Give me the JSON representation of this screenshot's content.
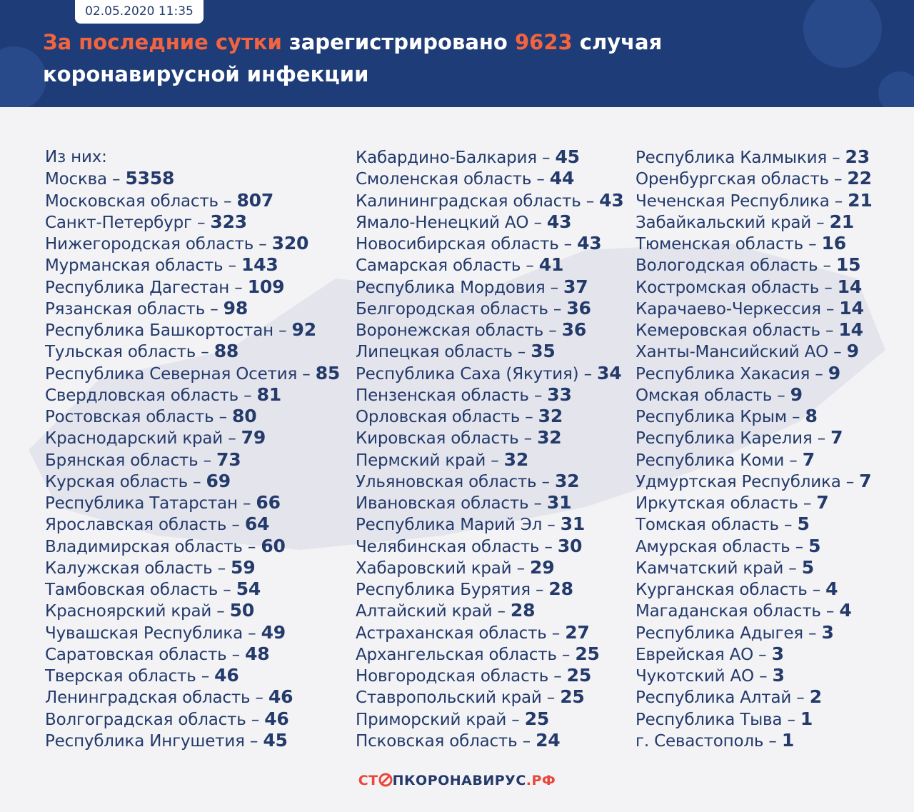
{
  "header": {
    "date": "02.05.2020 11:35",
    "title_highlight": "За последние сутки",
    "title_text": "зарегистрировано",
    "total": 9623,
    "title_end": "случая",
    "title_line2": "коронавирусной инфекции"
  },
  "intro": "Из них:",
  "separator": "–",
  "columns": [
    [
      {
        "name": "Москва",
        "value": 5358
      },
      {
        "name": "Московская область",
        "value": 807
      },
      {
        "name": "Санкт-Петербург",
        "value": 323
      },
      {
        "name": "Нижегородская область",
        "value": 320
      },
      {
        "name": "Мурманская область",
        "value": 143
      },
      {
        "name": "Республика Дагестан",
        "value": 109
      },
      {
        "name": "Рязанская область",
        "value": 98
      },
      {
        "name": "Республика Башкортостан",
        "value": 92
      },
      {
        "name": "Тульская область",
        "value": 88
      },
      {
        "name": "Республика Северная Осетия",
        "value": 85
      },
      {
        "name": "Свердловская область",
        "value": 81
      },
      {
        "name": "Ростовская область",
        "value": 80
      },
      {
        "name": "Краснодарский край",
        "value": 79
      },
      {
        "name": "Брянская область",
        "value": 73
      },
      {
        "name": "Курская область",
        "value": 69
      },
      {
        "name": "Республика Татарстан",
        "value": 66
      },
      {
        "name": "Ярославская область",
        "value": 64
      },
      {
        "name": "Владимирская область",
        "value": 60
      },
      {
        "name": "Калужская область",
        "value": 59
      },
      {
        "name": "Тамбовская область",
        "value": 54
      },
      {
        "name": "Красноярский край",
        "value": 50
      },
      {
        "name": "Чувашская Республика",
        "value": 49
      },
      {
        "name": "Саратовская область",
        "value": 48
      },
      {
        "name": "Тверская область",
        "value": 46
      },
      {
        "name": "Ленинградская область",
        "value": 46
      },
      {
        "name": "Волгоградская область",
        "value": 46
      },
      {
        "name": "Республика Ингушетия",
        "value": 45
      }
    ],
    [
      {
        "name": "Кабардино-Балкария",
        "value": 45
      },
      {
        "name": "Смоленская область",
        "value": 44
      },
      {
        "name": "Калининградская область",
        "value": 43
      },
      {
        "name": "Ямало-Ненецкий АО",
        "value": 43
      },
      {
        "name": "Новосибирская область",
        "value": 43
      },
      {
        "name": "Самарская область",
        "value": 41
      },
      {
        "name": "Республика Мордовия",
        "value": 37
      },
      {
        "name": "Белгородская область",
        "value": 36
      },
      {
        "name": "Воронежская область",
        "value": 36
      },
      {
        "name": "Липецкая область",
        "value": 35
      },
      {
        "name": "Республика Саха (Якутия)",
        "value": 34
      },
      {
        "name": "Пензенская область",
        "value": 33
      },
      {
        "name": "Орловская область",
        "value": 32
      },
      {
        "name": "Кировская область",
        "value": 32
      },
      {
        "name": "Пермский край",
        "value": 32
      },
      {
        "name": "Ульяновская область",
        "value": 32
      },
      {
        "name": "Ивановская область",
        "value": 31
      },
      {
        "name": "Республика Марий Эл",
        "value": 31
      },
      {
        "name": "Челябинская область",
        "value": 30
      },
      {
        "name": "Хабаровский край",
        "value": 29
      },
      {
        "name": "Республика Бурятия",
        "value": 28
      },
      {
        "name": "Алтайский край",
        "value": 28
      },
      {
        "name": "Астраханская область",
        "value": 27
      },
      {
        "name": "Архангельская область",
        "value": 25
      },
      {
        "name": "Новгородская область",
        "value": 25
      },
      {
        "name": "Ставропольский край",
        "value": 25
      },
      {
        "name": "Приморский край",
        "value": 25
      },
      {
        "name": "Псковская область",
        "value": 24
      }
    ],
    [
      {
        "name": "Республика Калмыкия",
        "value": 23
      },
      {
        "name": "Оренбургская область",
        "value": 22
      },
      {
        "name": "Чеченская Республика",
        "value": 21
      },
      {
        "name": "Забайкальский край",
        "value": 21
      },
      {
        "name": "Тюменская область",
        "value": 16
      },
      {
        "name": "Вологодская область",
        "value": 15
      },
      {
        "name": "Костромская область",
        "value": 14
      },
      {
        "name": "Карачаево-Черкессия",
        "value": 14
      },
      {
        "name": "Кемеровская область",
        "value": 14
      },
      {
        "name": "Ханты-Мансийский АО",
        "value": 9
      },
      {
        "name": "Республика Хакасия",
        "value": 9
      },
      {
        "name": "Омская область",
        "value": 9
      },
      {
        "name": "Республика Крым",
        "value": 8
      },
      {
        "name": "Республика Карелия",
        "value": 7
      },
      {
        "name": "Республика Коми",
        "value": 7
      },
      {
        "name": "Удмуртская Республика",
        "value": 7
      },
      {
        "name": "Иркутская область",
        "value": 7
      },
      {
        "name": "Томская область",
        "value": 5
      },
      {
        "name": "Амурская область",
        "value": 5
      },
      {
        "name": "Камчатский край",
        "value": 5
      },
      {
        "name": "Курганская область",
        "value": 4
      },
      {
        "name": "Магаданская область",
        "value": 4
      },
      {
        "name": "Республика Адыгея",
        "value": 3
      },
      {
        "name": "Еврейская АО",
        "value": 3
      },
      {
        "name": "Чукотский АО",
        "value": 3
      },
      {
        "name": "Республика Алтай",
        "value": 2
      },
      {
        "name": "Республика Тыва",
        "value": 1
      },
      {
        "name": "г. Севастополь",
        "value": 1
      }
    ]
  ],
  "footer": {
    "logo_start": "СТ",
    "logo_middle": "ПКОРОНАВИРУС",
    "logo_end": ".РФ"
  }
}
